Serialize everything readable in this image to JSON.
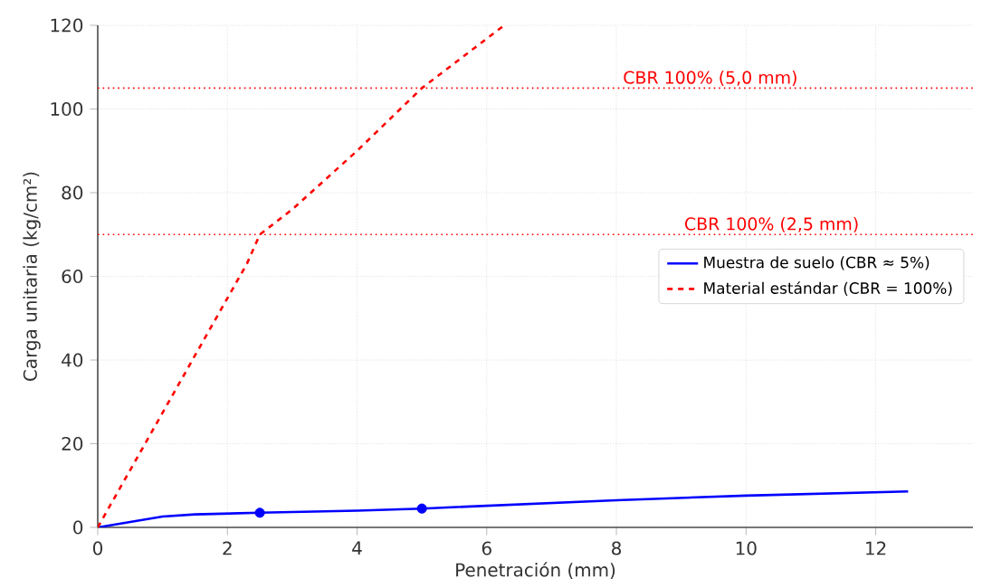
{
  "chart_data": {
    "type": "line",
    "xlabel": "Penetración (mm)",
    "ylabel": "Carga unitaria (kg/cm²)",
    "xlim": [
      0,
      13.5
    ],
    "ylim": [
      0,
      120
    ],
    "xticks": [
      0,
      2,
      4,
      6,
      8,
      10,
      12
    ],
    "yticks": [
      0,
      20,
      40,
      60,
      80,
      100,
      120
    ],
    "grid": true,
    "legend": "right",
    "series": [
      {
        "name": "Muestra de suelo (CBR ≈ 5%)",
        "color": "#0000ff",
        "line_style": "solid",
        "x": [
          0,
          1,
          1.5,
          2.5,
          4,
          5,
          8,
          10,
          12.5
        ],
        "values": [
          0,
          2.6,
          3.1,
          3.5,
          4,
          4.5,
          6.5,
          7.6,
          8.6
        ]
      },
      {
        "name": "Material estándar (CBR = 100%)",
        "color": "#ff0000",
        "line_style": "dashed",
        "x": [
          0,
          2.3,
          2.5,
          3,
          4,
          5,
          6.27
        ],
        "values": [
          0,
          63,
          70,
          76,
          90,
          105,
          120
        ]
      },
      {
        "type": "scatter",
        "color": "#0000ff",
        "marker": "circle",
        "x": [
          2.5,
          5
        ],
        "values": [
          3.5,
          4.5
        ]
      }
    ],
    "ref_lines": [
      {
        "axis": "y",
        "value": 70,
        "label": "CBR 100% (2,5 mm)",
        "color": "#ff0000",
        "line_style": "dotted"
      },
      {
        "axis": "y",
        "value": 105,
        "label": "CBR 100% (5,0 mm)",
        "color": "#ff0000",
        "line_style": "dotted"
      }
    ]
  }
}
